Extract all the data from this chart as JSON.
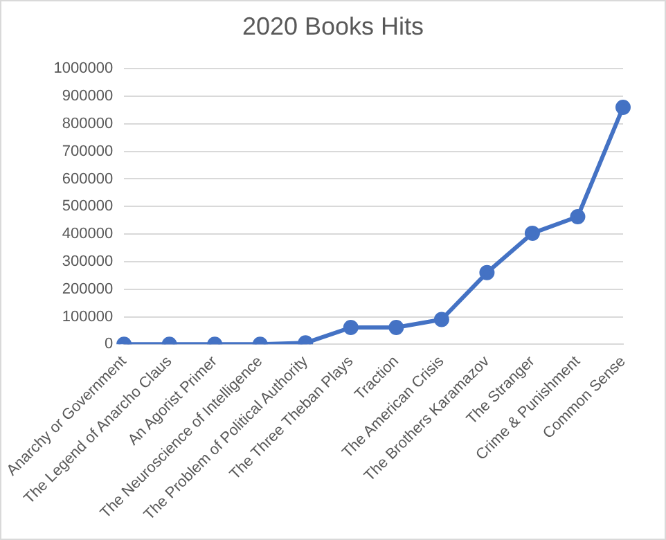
{
  "chart_data": {
    "type": "line",
    "title": "2020 Books Hits",
    "categories": [
      "Anarchy or Government",
      "The Legend of Anarcho Claus",
      "An Agorist Primer",
      "The Neuroscience of Intelligence",
      "The Problem of Political Authority",
      "The Three Theban Plays",
      "Traction",
      "The American Crisis",
      "The Brothers Karamazov",
      "The Stranger",
      "Crime & Punishment",
      "Common Sense"
    ],
    "series": [
      {
        "color": "#4472c4",
        "values": [
          0,
          0,
          0,
          0,
          5000,
          61000,
          61000,
          90000,
          260000,
          403000,
          463000,
          860000
        ]
      }
    ],
    "ylim": [
      0,
      1000000
    ],
    "yticks": [
      0,
      100000,
      200000,
      300000,
      400000,
      500000,
      600000,
      700000,
      800000,
      900000,
      1000000
    ],
    "grid": "y",
    "legend": false,
    "marker": "circle",
    "line_style": "solid"
  }
}
